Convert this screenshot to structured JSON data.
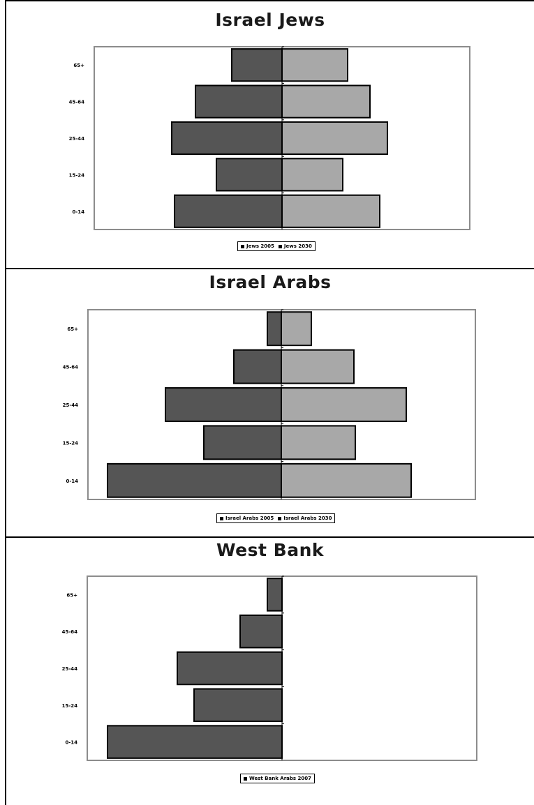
{
  "chart_data": [
    {
      "type": "bar",
      "title": "Israel Jews",
      "categories": [
        "0-14",
        "15-24",
        "25-44",
        "45-64",
        "65+"
      ],
      "series": [
        {
          "name": "Jews 2005",
          "values": [
            -154,
            -94,
            -158,
            -124,
            -72
          ],
          "color": "#555555"
        },
        {
          "name": "Jews 2030",
          "values": [
            140,
            87,
            151,
            126,
            94
          ],
          "color": "#a8a8a8"
        }
      ],
      "orientation": "horizontal",
      "grid": false,
      "legend_position": "bottom"
    },
    {
      "type": "bar",
      "title": "Israel Arabs",
      "categories": [
        "0-14",
        "15-24",
        "25-44",
        "45-64",
        "65+"
      ],
      "series": [
        {
          "name": "Israel Arabs 2005",
          "values": [
            -249,
            -111,
            -166,
            -68,
            -20
          ],
          "color": "#555555"
        },
        {
          "name": "Israel Arabs 2030",
          "values": [
            186,
            106,
            179,
            104,
            43
          ],
          "color": "#a8a8a8"
        }
      ],
      "orientation": "horizontal",
      "grid": false,
      "legend_position": "bottom"
    },
    {
      "type": "bar",
      "title": "West Bank",
      "categories": [
        "0-14",
        "15-24",
        "25-44",
        "45-64",
        "65+"
      ],
      "series": [
        {
          "name": "West Bank Arabs 2007",
          "values": [
            -250,
            -126,
            -150,
            -60,
            -21
          ],
          "color": "#555555"
        }
      ],
      "orientation": "horizontal",
      "grid": false,
      "legend_position": "bottom"
    }
  ]
}
